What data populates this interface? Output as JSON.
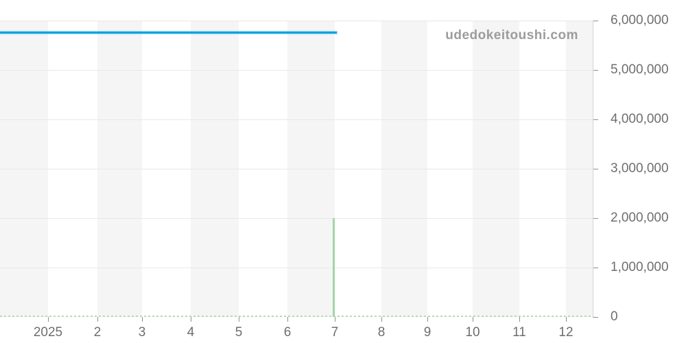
{
  "watermark": "udedokeitoushi.com",
  "colors": {
    "price_line_blue": "#0ca2e0",
    "event_spike_green": "#a2d6a6",
    "zero_baseline_green_dashed": "#b0dcb2",
    "month_band_gray": "#f5f5f5",
    "gridline_gray": "#e8e8e8",
    "axis_text_gray": "#6e6e6e",
    "watermark_gray": "#9c9c9c"
  },
  "chart_data": {
    "type": "line",
    "title": "",
    "xlabel": "",
    "ylabel": "",
    "x_tick_labels": [
      "2025",
      "2",
      "3",
      "4",
      "5",
      "6",
      "7",
      "8",
      "9",
      "10",
      "11",
      "12"
    ],
    "x_range_note": "time axis from Dec 2024 to end of Dec 2025, monthly ticks, alternating shaded month bands starting shaded at left edge",
    "y_tick_values": [
      6000000,
      5000000,
      4000000,
      3000000,
      2000000,
      1000000,
      0
    ],
    "y_tick_labels": [
      "6,000,000",
      "5,000,000",
      "4,000,000",
      "3,000,000",
      "2,000,000",
      "1,000,000",
      "0"
    ],
    "ylim": [
      0,
      6000000
    ],
    "grid": "horizontal gridlines on, y axis labels on right side",
    "legend": "none",
    "series": [
      {
        "name": "price-line",
        "color": "#0ca2e0",
        "style": "solid",
        "description": "flat blue price line from left edge (Dec 2024) to early July 2025",
        "x": [
          "2024-12",
          "2025-07"
        ],
        "values": [
          5760000,
          5760000
        ]
      },
      {
        "name": "event-spike",
        "color": "#a2d6a6",
        "style": "solid-vertical",
        "description": "vertical green line at July 2025 from 0 up to 2,000,000",
        "x": "2025-07",
        "y_from": 0,
        "y_to": 2000000
      },
      {
        "name": "zero-baseline",
        "color": "#b0dcb2",
        "style": "dashed",
        "description": "dashed green line at value 0 across the full x range",
        "x": [
          "2024-12",
          "2025-12"
        ],
        "values": [
          0,
          0
        ]
      }
    ]
  }
}
